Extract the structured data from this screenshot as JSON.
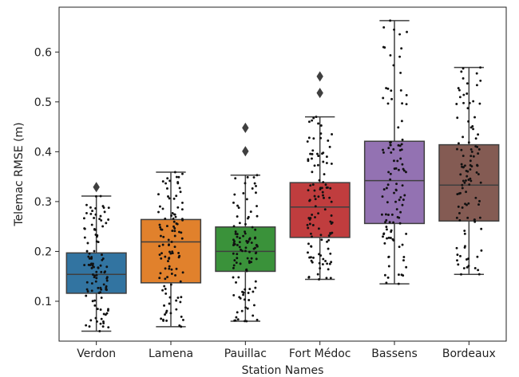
{
  "chart_data": {
    "type": "box",
    "xlabel": "Station Names",
    "ylabel": "Telemac RMSE (m)",
    "ylim": [
      0.02,
      0.69
    ],
    "yticks": [
      0.1,
      0.2,
      0.3,
      0.4,
      0.5,
      0.6
    ],
    "ytick_labels": [
      "0.1",
      "0.2",
      "0.3",
      "0.4",
      "0.5",
      "0.6"
    ],
    "grid": false,
    "legend": "none",
    "jitter_points": "strip of ~100 per station (black dots)",
    "stations": [
      {
        "name": "Verdon",
        "color": "#3274a1",
        "whisker_low": 0.04,
        "q1": 0.116,
        "median": 0.154,
        "q3": 0.197,
        "whisker_high": 0.311,
        "outliers": [
          0.329
        ]
      },
      {
        "name": "Lamena",
        "color": "#e1812c",
        "whisker_low": 0.049,
        "q1": 0.137,
        "median": 0.219,
        "q3": 0.264,
        "whisker_high": 0.359,
        "outliers": []
      },
      {
        "name": "Pauillac",
        "color": "#3a923a",
        "whisker_low": 0.06,
        "q1": 0.16,
        "median": 0.2,
        "q3": 0.249,
        "whisker_high": 0.353,
        "outliers": [
          0.401,
          0.448
        ]
      },
      {
        "name": "Fort Médoc",
        "color": "#c03d3e",
        "whisker_low": 0.144,
        "q1": 0.228,
        "median": 0.289,
        "q3": 0.338,
        "whisker_high": 0.47,
        "outliers": [
          0.518,
          0.551
        ]
      },
      {
        "name": "Bassens",
        "color": "#9372b2",
        "whisker_low": 0.135,
        "q1": 0.256,
        "median": 0.342,
        "q3": 0.421,
        "whisker_high": 0.663,
        "outliers": []
      },
      {
        "name": "Bordeaux",
        "color": "#845b53",
        "whisker_low": 0.154,
        "q1": 0.261,
        "median": 0.333,
        "q3": 0.414,
        "whisker_high": 0.569,
        "outliers": []
      }
    ]
  }
}
